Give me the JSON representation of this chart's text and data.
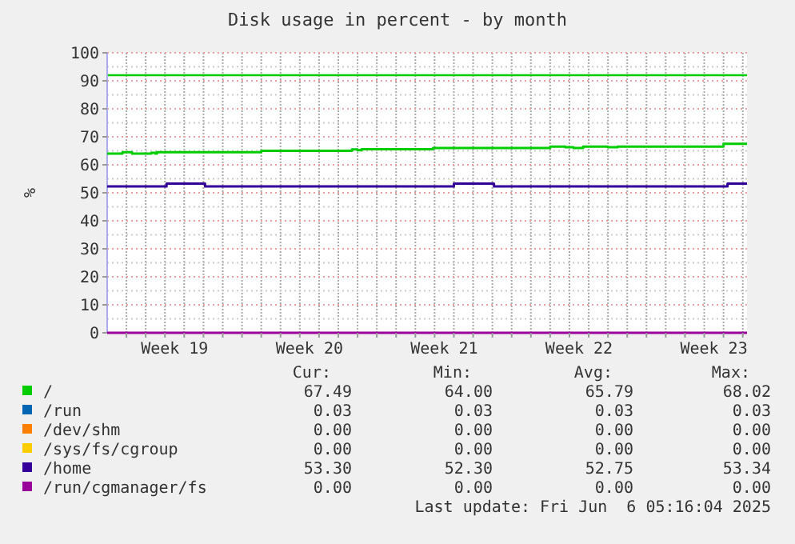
{
  "chart_data": {
    "type": "step",
    "title": "Disk usage in percent - by month",
    "ylabel": "%",
    "xlim": [
      "2025-05-04T00:00",
      "2025-06-06T05:16"
    ],
    "xticks": [
      {
        "value": "2025-05-05",
        "label": null
      },
      {
        "value": "2025-05-06",
        "label": null
      },
      {
        "value": "2025-05-07",
        "label": null
      },
      {
        "value": "2025-05-07T12:00",
        "label": "Week 19"
      },
      {
        "value": "2025-05-08",
        "label": null
      },
      {
        "value": "2025-05-09",
        "label": null
      },
      {
        "value": "2025-05-10",
        "label": null
      },
      {
        "value": "2025-05-11",
        "label": null
      },
      {
        "value": "2025-05-12",
        "label": null
      },
      {
        "value": "2025-05-13",
        "label": null
      },
      {
        "value": "2025-05-14",
        "label": null
      },
      {
        "value": "2025-05-14T12:00",
        "label": "Week 20"
      },
      {
        "value": "2025-05-15",
        "label": null
      },
      {
        "value": "2025-05-16",
        "label": null
      },
      {
        "value": "2025-05-17",
        "label": null
      },
      {
        "value": "2025-05-18",
        "label": null
      },
      {
        "value": "2025-05-19",
        "label": null
      },
      {
        "value": "2025-05-20",
        "label": null
      },
      {
        "value": "2025-05-21",
        "label": null
      },
      {
        "value": "2025-05-21T12:00",
        "label": "Week 21"
      },
      {
        "value": "2025-05-22",
        "label": null
      },
      {
        "value": "2025-05-23",
        "label": null
      },
      {
        "value": "2025-05-24",
        "label": null
      },
      {
        "value": "2025-05-25",
        "label": null
      },
      {
        "value": "2025-05-26",
        "label": null
      },
      {
        "value": "2025-05-27",
        "label": null
      },
      {
        "value": "2025-05-28",
        "label": null
      },
      {
        "value": "2025-05-28T12:00",
        "label": "Week 22"
      },
      {
        "value": "2025-05-29",
        "label": null
      },
      {
        "value": "2025-05-30",
        "label": null
      },
      {
        "value": "2025-05-31",
        "label": null
      },
      {
        "value": "2025-06-01",
        "label": null
      },
      {
        "value": "2025-06-02",
        "label": null
      },
      {
        "value": "2025-06-03",
        "label": null
      },
      {
        "value": "2025-06-04",
        "label": null
      },
      {
        "value": "2025-06-04T12:00",
        "label": "Week 23"
      },
      {
        "value": "2025-06-05",
        "label": null
      },
      {
        "value": "2025-06-06",
        "label": null
      }
    ],
    "ylim": [
      0,
      100
    ],
    "yticks": [
      0,
      {
        "value": 5,
        "label": null
      },
      10,
      {
        "value": 15,
        "label": null
      },
      20,
      {
        "value": 25,
        "label": null
      },
      30,
      {
        "value": 35,
        "label": null
      },
      40,
      {
        "value": 45,
        "label": null
      },
      50,
      {
        "value": 55,
        "label": null
      },
      60,
      {
        "value": 65,
        "label": null
      },
      70,
      {
        "value": 75,
        "label": null
      },
      80,
      {
        "value": 85,
        "label": null
      },
      90,
      {
        "value": 95,
        "label": null
      },
      100
    ],
    "grid": true,
    "legend": "bottom",
    "line_style": "solid",
    "marker": "none",
    "ref_lines": [
      {
        "axis": "y",
        "value": 92,
        "color": "#00cc00"
      }
    ],
    "series": [
      {
        "name": "/",
        "color": "#00cc00",
        "x": [
          "2025-05-04T00:00",
          "2025-05-04T19:00",
          "2025-05-05T07:00",
          "2025-05-06T07:00",
          "2025-05-06T12:00",
          "2025-05-06T14:00",
          "2025-05-12T00:00",
          "2025-05-16T17:00",
          "2025-05-17T00:00",
          "2025-05-17T05:00",
          "2025-05-20T22:00",
          "2025-05-27T00:00",
          "2025-05-27T19:00",
          "2025-05-28T05:00",
          "2025-05-28T17:00",
          "2025-05-30T00:00",
          "2025-05-30T12:00",
          "2025-06-05T00:00",
          "2025-06-06T05:16"
        ],
        "values": [
          64.0,
          64.5,
          64.0,
          64.3,
          64.0,
          64.5,
          65.0,
          65.5,
          65.2,
          65.6,
          66.0,
          66.5,
          66.3,
          66.0,
          66.5,
          66.3,
          66.5,
          67.5,
          67.5
        ]
      },
      {
        "name": "/run",
        "color": "#0066b3"
      },
      {
        "name": "/dev/shm",
        "color": "#ff8000"
      },
      {
        "name": "/sys/fs/cgroup",
        "color": "#ffcc00"
      },
      {
        "name": "/home",
        "color": "#330099",
        "x": [
          "2025-05-04T00:00",
          "2025-05-07T02:00",
          "2025-05-09T02:00",
          "2025-05-22T00:00",
          "2025-05-24T02:00",
          "2025-06-05T05:00",
          "2025-06-06T05:16"
        ],
        "values": [
          52.3,
          53.3,
          52.3,
          53.3,
          52.3,
          53.3,
          53.3
        ]
      },
      {
        "name": "/run/cgmanager/fs",
        "color": "#990099",
        "x": [
          "2025-05-04T00:00",
          "2025-06-06T05:16"
        ],
        "values": [
          0,
          0
        ]
      }
    ],
    "annotations": [
      "Cur:",
      "Min:",
      "Avg:",
      "Max:",
      "67.49",
      "64.00",
      "65.79",
      "68.02",
      "0.03",
      "0.03",
      "0.03",
      "0.03",
      "0.00",
      "0.00",
      "0.00",
      "0.00",
      "0.00",
      "0.00",
      "0.00",
      "0.00",
      "53.30",
      "52.30",
      "52.75",
      "53.34",
      "0.00",
      "0.00",
      "0.00",
      "0.00",
      "Last update: Fri Jun  6 05:16:04 2025"
    ]
  }
}
